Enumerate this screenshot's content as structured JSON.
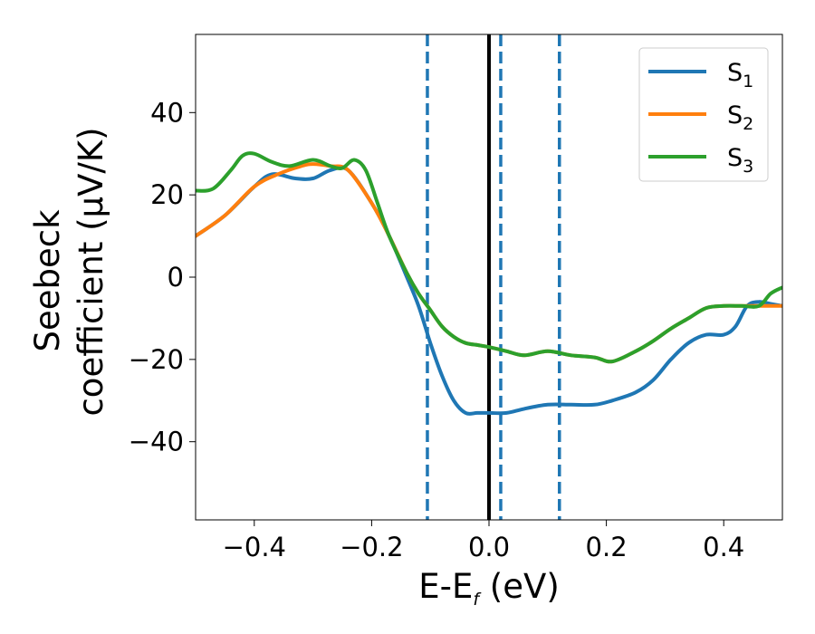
{
  "chart_data": {
    "type": "line",
    "xlabel_main": "E-E",
    "xlabel_sub": "f",
    "xlabel_unit": " (eV)",
    "ylabel_line1": "Seebeck",
    "ylabel_line2": "coefficient  (μV/K)",
    "xlim": [
      -0.5,
      0.5
    ],
    "ylim": [
      -59,
      59
    ],
    "xticks": [
      -0.4,
      -0.2,
      0.0,
      0.2,
      0.4
    ],
    "xtick_labels": [
      "−0.4",
      "−0.2",
      "0.0",
      "0.2",
      "0.4"
    ],
    "yticks": [
      40,
      20,
      0,
      -20,
      -40
    ],
    "ytick_labels": [
      "40",
      "20",
      "0",
      "−20",
      "−40"
    ],
    "vlines": [
      {
        "x": -0.105,
        "style": "dashed",
        "color": "#1f77b4"
      },
      {
        "x": 0.0,
        "style": "solid",
        "color": "#000000"
      },
      {
        "x": 0.02,
        "style": "dashed",
        "color": "#1f77b4"
      },
      {
        "x": 0.12,
        "style": "dashed",
        "color": "#1f77b4"
      }
    ],
    "legend_position": "top-right",
    "series": [
      {
        "name": "S",
        "sub": "1",
        "color": "#1f77b4",
        "x": [
          -0.5,
          -0.45,
          -0.4,
          -0.37,
          -0.33,
          -0.3,
          -0.27,
          -0.24,
          -0.2,
          -0.17,
          -0.14,
          -0.12,
          -0.1,
          -0.08,
          -0.06,
          -0.04,
          -0.02,
          0.0,
          0.03,
          0.06,
          0.1,
          0.14,
          0.18,
          0.21,
          0.25,
          0.28,
          0.31,
          0.34,
          0.37,
          0.4,
          0.42,
          0.44,
          0.46,
          0.48,
          0.5
        ],
        "y": [
          10,
          15,
          22,
          25,
          24,
          24,
          26,
          26,
          18,
          10,
          0,
          -7,
          -16,
          -24,
          -30,
          -33,
          -33,
          -33,
          -33,
          -32,
          -31,
          -31,
          -31,
          -30,
          -28,
          -25,
          -20,
          -16,
          -14,
          -14,
          -12,
          -7,
          -6,
          -6.5,
          -7
        ]
      },
      {
        "name": "S",
        "sub": "2",
        "color": "#ff7f0e",
        "x": [
          -0.5,
          -0.45,
          -0.4,
          -0.36,
          -0.32,
          -0.3,
          -0.27,
          -0.24,
          -0.2,
          -0.17,
          -0.14,
          -0.12,
          -0.1,
          -0.08,
          -0.06,
          -0.04,
          -0.02,
          0.0,
          0.03,
          0.06,
          0.1,
          0.14,
          0.18,
          0.21,
          0.25,
          0.28,
          0.31,
          0.34,
          0.37,
          0.4,
          0.43,
          0.46,
          0.5
        ],
        "y": [
          10,
          15,
          22,
          25,
          27,
          27.5,
          27,
          26,
          18,
          10,
          1,
          -4,
          -8,
          -12,
          -14.5,
          -16,
          -16.5,
          -17,
          -18,
          -19,
          -18,
          -19,
          -19.5,
          -20.5,
          -18,
          -15.5,
          -12.5,
          -10,
          -7.5,
          -7,
          -7,
          -7,
          -7
        ]
      },
      {
        "name": "S",
        "sub": "3",
        "color": "#2ca02c",
        "x": [
          -0.5,
          -0.47,
          -0.44,
          -0.42,
          -0.4,
          -0.37,
          -0.34,
          -0.3,
          -0.27,
          -0.25,
          -0.23,
          -0.21,
          -0.19,
          -0.17,
          -0.14,
          -0.12,
          -0.1,
          -0.08,
          -0.06,
          -0.04,
          -0.02,
          0.0,
          0.03,
          0.06,
          0.1,
          0.14,
          0.18,
          0.21,
          0.25,
          0.28,
          0.31,
          0.34,
          0.37,
          0.4,
          0.43,
          0.46,
          0.48,
          0.5
        ],
        "y": [
          21,
          21.5,
          26,
          29.5,
          30,
          28,
          27,
          28.5,
          27,
          26.5,
          28.5,
          26,
          18,
          10,
          1,
          -4,
          -8,
          -12,
          -14.5,
          -16,
          -16.5,
          -17,
          -18,
          -19,
          -18,
          -19,
          -19.5,
          -20.5,
          -18,
          -15.5,
          -12.5,
          -10,
          -7.5,
          -7,
          -7,
          -7,
          -4,
          -2.5
        ]
      }
    ]
  }
}
